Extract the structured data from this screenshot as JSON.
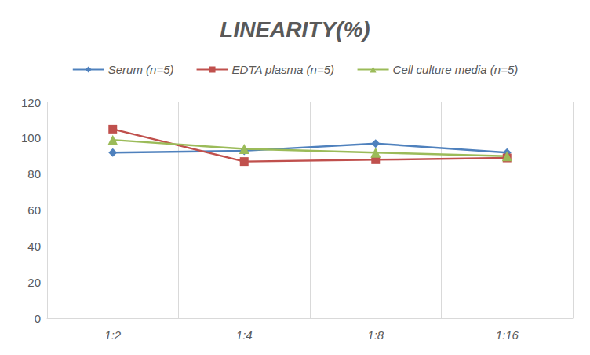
{
  "chart_data": {
    "type": "line",
    "title": "LINEARITY(%)",
    "categories": [
      "1:2",
      "1:4",
      "1:8",
      "1:16"
    ],
    "series": [
      {
        "name": "Serum (n=5)",
        "color": "#4f81bd",
        "marker": "diamond",
        "values": [
          92,
          93,
          97,
          92
        ]
      },
      {
        "name": "EDTA plasma (n=5)",
        "color": "#c0504d",
        "marker": "square",
        "values": [
          105,
          87,
          88,
          89
        ]
      },
      {
        "name": "Cell culture media (n=5)",
        "color": "#9bbb59",
        "marker": "triangle",
        "values": [
          99,
          94,
          92,
          90
        ]
      }
    ],
    "ylim": [
      0,
      120
    ],
    "yticks": [
      0,
      20,
      40,
      60,
      80,
      100,
      120
    ],
    "grid": true,
    "legend": "top"
  }
}
